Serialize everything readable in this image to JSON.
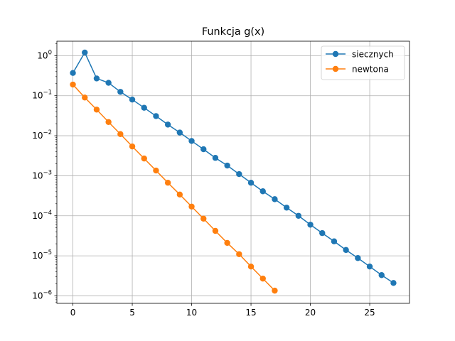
{
  "chart_data": {
    "type": "line",
    "title": "Funkcja g(x)",
    "xlabel": "",
    "ylabel": "",
    "yscale": "log",
    "xlim": [
      -1.35,
      28.35
    ],
    "ylim": [
      6.5e-07,
      2.3
    ],
    "grid": true,
    "legend_position": "top-right",
    "x_ticks": [
      0,
      5,
      10,
      15,
      20,
      25
    ],
    "y_ticks": [
      {
        "value": 1,
        "base": "10",
        "exp": "0"
      },
      {
        "value": 0.1,
        "base": "10",
        "exp": "−1"
      },
      {
        "value": 0.01,
        "base": "10",
        "exp": "−2"
      },
      {
        "value": 0.001,
        "base": "10",
        "exp": "−3"
      },
      {
        "value": 0.0001,
        "base": "10",
        "exp": "−4"
      },
      {
        "value": 1e-05,
        "base": "10",
        "exp": "−5"
      },
      {
        "value": 1e-06,
        "base": "10",
        "exp": "−6"
      }
    ],
    "series": [
      {
        "name": "siecznych",
        "color": "#1f77b4",
        "x": [
          0,
          1,
          2,
          3,
          4,
          5,
          6,
          7,
          8,
          9,
          10,
          11,
          12,
          13,
          14,
          15,
          16,
          17,
          18,
          19,
          20,
          21,
          22,
          23,
          24,
          25,
          26,
          27
        ],
        "values": [
          0.37,
          1.2,
          0.27,
          0.21,
          0.125,
          0.08,
          0.05,
          0.031,
          0.019,
          0.012,
          0.0074,
          0.0046,
          0.0028,
          0.0018,
          0.0011,
          0.00067,
          0.00041,
          0.00026,
          0.00016,
          0.0001,
          6e-05,
          3.7e-05,
          2.3e-05,
          1.4e-05,
          8.8e-06,
          5.4e-06,
          3.3e-06,
          2.1e-06
        ]
      },
      {
        "name": "newtona",
        "color": "#ff7f0e",
        "x": [
          0,
          1,
          2,
          3,
          4,
          5,
          6,
          7,
          8,
          9,
          10,
          11,
          12,
          13,
          14,
          15,
          16,
          17
        ],
        "values": [
          0.19,
          0.09,
          0.045,
          0.022,
          0.011,
          0.0054,
          0.0027,
          0.00135,
          0.00067,
          0.00034,
          0.00017,
          8.5e-05,
          4.2e-05,
          2.1e-05,
          1.1e-05,
          5.4e-06,
          2.7e-06,
          1.35e-06
        ]
      }
    ]
  }
}
